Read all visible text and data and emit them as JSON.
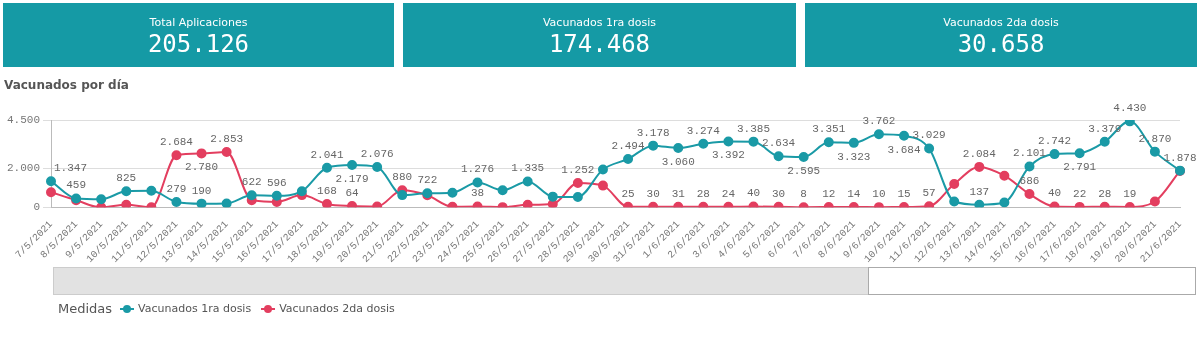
{
  "chart_data": [
    {
      "type": "other",
      "title": "Total Aplicaciones",
      "annotations": [
        "205.126"
      ]
    },
    {
      "type": "other",
      "title": "Vacunados 1ra dosis",
      "annotations": [
        "174.468"
      ]
    },
    {
      "type": "other",
      "title": "Vacunados 2da dosis",
      "annotations": [
        "30.658"
      ]
    },
    {
      "type": "line",
      "title": "Vacunados por día",
      "legend_title": "Medidas",
      "legend": "bottom left",
      "grid": "y",
      "marker": "circle",
      "line_style": "solid",
      "categories": [
        "7/5/2021",
        "8/5/2021",
        "9/5/2021",
        "10/5/2021",
        "11/5/2021",
        "12/5/2021",
        "13/5/2021",
        "14/5/2021",
        "15/5/2021",
        "16/5/2021",
        "17/5/2021",
        "18/5/2021",
        "19/5/2021",
        "20/5/2021",
        "21/5/2021",
        "22/5/2021",
        "23/5/2021",
        "24/5/2021",
        "25/5/2021",
        "26/5/2021",
        "27/5/2021",
        "28/5/2021",
        "29/5/2021",
        "30/5/2021",
        "31/5/2021",
        "1/6/2021",
        "2/6/2021",
        "3/6/2021",
        "4/6/2021",
        "5/6/2021",
        "6/6/2021",
        "7/6/2021",
        "8/6/2021",
        "9/6/2021",
        "10/6/2021",
        "11/6/2021",
        "12/6/2021",
        "13/6/2021",
        "14/6/2021",
        "15/6/2021",
        "16/6/2021",
        "17/6/2021",
        "18/6/2021",
        "19/6/2021",
        "20/6/2021",
        "21/6/2021"
      ],
      "ylim": [
        0,
        4500
      ],
      "yticks": [
        0,
        {
          "value": 2000,
          "label": "2.000"
        },
        {
          "value": 4500,
          "label": "4.500"
        }
      ],
      "series": [
        {
          "name": "Vacunados 1ra dosis",
          "color": "#1a9aa6",
          "values": [
            1347,
            459,
            420,
            825,
            850,
            279,
            190,
            200,
            622,
            596,
            830,
            2041,
            2179,
            2076,
            630,
            722,
            750,
            1276,
            880,
            1335,
            550,
            530,
            1950,
            2494,
            3178,
            3060,
            3274,
            3392,
            3385,
            2634,
            2595,
            3351,
            3323,
            3762,
            3684,
            3029,
            300,
            137,
            250,
            2101,
            2742,
            2791,
            3379,
            4430,
            2870,
            1890
          ],
          "value_labels": [
            "1.347",
            "459",
            null,
            "825",
            null,
            "279",
            "190",
            null,
            "622",
            "596",
            null,
            "2.041",
            "2.179",
            "2.076",
            null,
            "722",
            null,
            "1.276",
            null,
            "1.335",
            null,
            null,
            null,
            "2.494",
            "3.178",
            "3.060",
            "3.274",
            "3.392",
            "3.385",
            "2.634",
            "2.595",
            "3.351",
            "3.323",
            "3.762",
            "3.684",
            "3.029",
            null,
            "137",
            null,
            "2.101",
            "2.742",
            "2.791",
            "3.379",
            "4.430",
            "2.870",
            null
          ]
        },
        {
          "name": "Vacunados 2da dosis",
          "color": "#e33e5f",
          "values": [
            780,
            370,
            0,
            130,
            0,
            2684,
            2780,
            2853,
            370,
            280,
            630,
            168,
            64,
            40,
            880,
            620,
            30,
            38,
            10,
            130,
            170,
            1252,
            1120,
            25,
            30,
            31,
            28,
            24,
            40,
            30,
            8,
            12,
            14,
            10,
            15,
            57,
            1200,
            2084,
            1630,
            686,
            40,
            22,
            28,
            19,
            300,
            1878
          ],
          "value_labels": [
            null,
            null,
            null,
            null,
            null,
            "2.684",
            "2.780",
            "2.853",
            null,
            null,
            null,
            "168",
            "64",
            null,
            "880",
            null,
            null,
            "38",
            null,
            null,
            null,
            "1.252",
            null,
            "25",
            "30",
            "31",
            "28",
            "24",
            "40",
            "30",
            "8",
            "12",
            "14",
            "10",
            "15",
            "57",
            null,
            "2.084",
            null,
            "686",
            "40",
            "22",
            "28",
            "19",
            null,
            "1.878"
          ]
        }
      ]
    }
  ]
}
